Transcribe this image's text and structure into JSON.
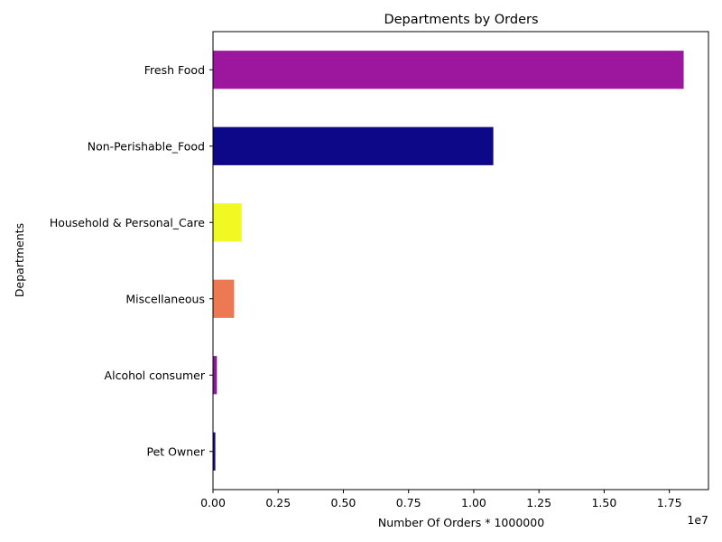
{
  "chart_data": {
    "type": "bar",
    "orientation": "horizontal",
    "title": "Departments by Orders",
    "xlabel": "Number Of Orders * 1000000",
    "ylabel": "Departments",
    "x_offset_label": "1e7",
    "xlim": [
      0,
      19000000
    ],
    "x_ticks": [
      0,
      2500000,
      5000000,
      7500000,
      10000000,
      12500000,
      15000000,
      17500000
    ],
    "x_tick_labels": [
      "0.00",
      "0.25",
      "0.50",
      "0.75",
      "1.00",
      "1.25",
      "1.50",
      "1.75"
    ],
    "grid": false,
    "legend": "none",
    "categories": [
      "Fresh Food",
      "Non-Perishable_Food",
      "Household & Personal_Care",
      "Miscellaneous",
      "Alcohol consumer",
      "Pet Owner"
    ],
    "values": [
      18050000,
      10750000,
      1100000,
      810000,
      150000,
      90000
    ],
    "colors": [
      "#9c179e",
      "#0d0887",
      "#f0f921",
      "#ed7953",
      "#8b1a9a",
      "#1a0a8a"
    ]
  }
}
